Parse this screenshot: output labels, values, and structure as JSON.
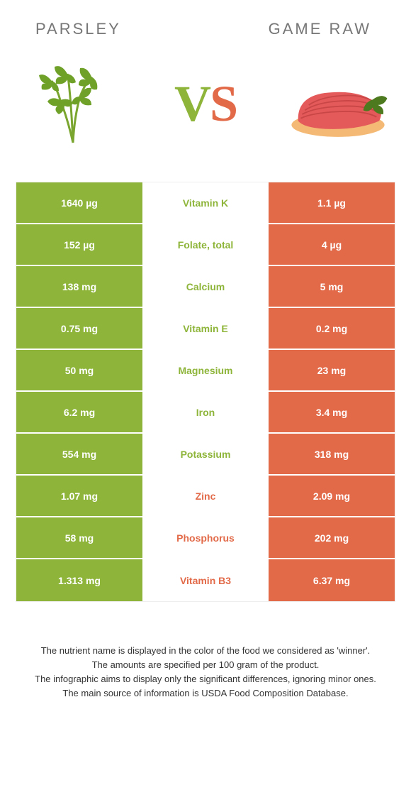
{
  "header": {
    "left_title": "PARSLEY",
    "right_title": "GAME RAW"
  },
  "vs": {
    "left_char": "V",
    "right_char": "S"
  },
  "colors": {
    "left_bg": "#8eb53a",
    "right_bg": "#e26a49",
    "left_text": "#8eb53a",
    "right_text": "#e26a49",
    "cell_text": "#ffffff"
  },
  "rows": [
    {
      "left": "1640 µg",
      "name": "Vitamin K",
      "right": "1.1 µg",
      "winner": "left"
    },
    {
      "left": "152 µg",
      "name": "Folate, total",
      "right": "4 µg",
      "winner": "left"
    },
    {
      "left": "138 mg",
      "name": "Calcium",
      "right": "5 mg",
      "winner": "left"
    },
    {
      "left": "0.75 mg",
      "name": "Vitamin E",
      "right": "0.2 mg",
      "winner": "left"
    },
    {
      "left": "50 mg",
      "name": "Magnesium",
      "right": "23 mg",
      "winner": "left"
    },
    {
      "left": "6.2 mg",
      "name": "Iron",
      "right": "3.4 mg",
      "winner": "left"
    },
    {
      "left": "554 mg",
      "name": "Potassium",
      "right": "318 mg",
      "winner": "left"
    },
    {
      "left": "1.07 mg",
      "name": "Zinc",
      "right": "2.09 mg",
      "winner": "right"
    },
    {
      "left": "58 mg",
      "name": "Phosphorus",
      "right": "202 mg",
      "winner": "right"
    },
    {
      "left": "1.313 mg",
      "name": "Vitamin B3",
      "right": "6.37 mg",
      "winner": "right"
    }
  ],
  "footnote": {
    "l1": "The nutrient name is displayed in the color of the food we considered as 'winner'.",
    "l2": "The amounts are specified per 100 gram of the product.",
    "l3": "The infographic aims to display only the significant differences, ignoring minor ones.",
    "l4": "The main source of information is USDA Food Composition Database."
  }
}
